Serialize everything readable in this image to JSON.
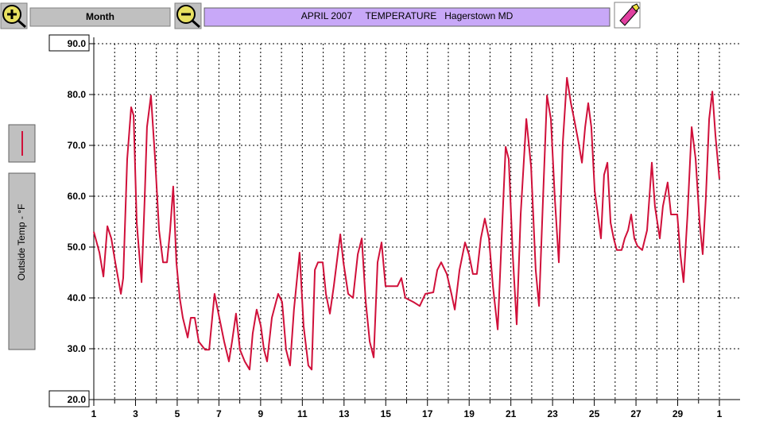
{
  "toolbar": {
    "period_button": "Month"
  },
  "chart_data": {
    "type": "line",
    "title": "APRIL 2007     TEMPERATURE   Hagerstown MD",
    "y_label": "Outside Temp - °F",
    "grid": true,
    "xlim": [
      1,
      31
    ],
    "ylim": [
      20,
      90
    ],
    "xticks": [
      1,
      3,
      5,
      7,
      9,
      11,
      13,
      15,
      17,
      19,
      21,
      23,
      25,
      27,
      29,
      {
        "value": 31,
        "label": "1"
      }
    ],
    "xminorticks": [
      2,
      4,
      6,
      8,
      10,
      12,
      14,
      16,
      18,
      20,
      22,
      24,
      26,
      28,
      30
    ],
    "yticks": [
      {
        "value": 20,
        "label": "20.0"
      },
      {
        "value": 30,
        "label": "30.0"
      },
      {
        "value": 40,
        "label": "40.0"
      },
      {
        "value": 50,
        "label": "50.0"
      },
      {
        "value": 60,
        "label": "60.0"
      },
      {
        "value": 70,
        "label": "70.0"
      },
      {
        "value": 80,
        "label": "80.0"
      },
      {
        "value": 90,
        "label": "90.0"
      }
    ],
    "x": [
      1.0,
      1.27,
      1.46,
      1.65,
      1.84,
      2.03,
      2.3,
      2.41,
      2.6,
      2.79,
      2.91,
      3.06,
      3.29,
      3.44,
      3.55,
      3.74,
      3.94,
      4.13,
      4.32,
      4.51,
      4.66,
      4.81,
      4.96,
      5.12,
      5.27,
      5.5,
      5.65,
      5.84,
      6.03,
      6.34,
      6.53,
      6.79,
      7.02,
      7.25,
      7.48,
      7.63,
      7.82,
      8.01,
      8.24,
      8.47,
      8.62,
      8.81,
      9.01,
      9.16,
      9.31,
      9.54,
      9.84,
      10.03,
      10.22,
      10.41,
      10.6,
      10.87,
      11.06,
      11.29,
      11.45,
      11.6,
      11.75,
      11.98,
      12.13,
      12.32,
      12.51,
      12.82,
      12.97,
      13.2,
      13.43,
      13.66,
      13.85,
      14.04,
      14.23,
      14.42,
      14.61,
      14.8,
      14.99,
      15.26,
      15.56,
      15.75,
      15.94,
      16.32,
      16.63,
      16.9,
      17.28,
      17.47,
      17.66,
      17.93,
      18.15,
      18.31,
      18.54,
      18.8,
      18.99,
      19.18,
      19.37,
      19.56,
      19.75,
      19.95,
      20.14,
      20.37,
      20.59,
      20.75,
      20.9,
      21.09,
      21.28,
      21.47,
      21.74,
      21.97,
      22.19,
      22.35,
      22.54,
      22.73,
      22.92,
      23.11,
      23.3,
      23.49,
      23.69,
      23.88,
      24.03,
      24.25,
      24.41,
      24.56,
      24.71,
      24.86,
      25.02,
      25.17,
      25.32,
      25.47,
      25.63,
      25.78,
      25.93,
      26.08,
      26.31,
      26.46,
      26.62,
      26.77,
      26.92,
      27.07,
      27.3,
      27.53,
      27.76,
      27.91,
      28.14,
      28.29,
      28.52,
      28.68,
      28.83,
      28.98,
      29.13,
      29.28,
      29.47,
      29.67,
      29.86,
      30.05,
      30.2,
      30.35,
      30.51,
      30.66,
      30.81,
      31.0
    ],
    "series": [
      {
        "color": "#d0103a",
        "values": [
          53.0,
          48.9,
          44.2,
          54.1,
          51.7,
          47.0,
          40.8,
          43.9,
          67.3,
          77.5,
          75.9,
          54.8,
          43.1,
          59.5,
          73.6,
          79.8,
          67.3,
          53.3,
          47.0,
          47.0,
          53.3,
          61.9,
          47.0,
          40.0,
          36.1,
          32.2,
          36.1,
          36.1,
          31.4,
          29.8,
          29.8,
          40.8,
          36.1,
          31.4,
          27.5,
          31.4,
          36.9,
          29.8,
          27.5,
          25.9,
          33.0,
          37.7,
          34.5,
          29.8,
          27.5,
          36.1,
          40.8,
          39.2,
          29.8,
          26.7,
          37.7,
          48.9,
          34.5,
          26.7,
          25.9,
          45.5,
          47.0,
          47.0,
          40.8,
          36.9,
          42.3,
          52.5,
          47.0,
          40.8,
          40.0,
          48.6,
          51.7,
          39.2,
          31.4,
          28.3,
          47.0,
          50.9,
          42.3,
          42.3,
          42.3,
          43.9,
          40.0,
          39.2,
          38.4,
          40.8,
          41.1,
          45.5,
          47.0,
          44.7,
          40.8,
          37.7,
          45.5,
          50.9,
          48.6,
          44.7,
          44.7,
          51.7,
          55.6,
          51.7,
          42.3,
          33.8,
          54.8,
          69.7,
          67.3,
          48.6,
          34.8,
          56.4,
          75.2,
          65.8,
          45.5,
          38.4,
          59.5,
          79.8,
          75.2,
          59.5,
          47.0,
          70.5,
          83.3,
          78.3,
          75.2,
          70.5,
          66.6,
          73.6,
          78.3,
          73.6,
          61.1,
          56.4,
          51.7,
          64.2,
          66.6,
          54.8,
          51.7,
          49.4,
          49.4,
          51.7,
          53.3,
          56.4,
          51.7,
          50.2,
          49.4,
          53.3,
          66.6,
          58.0,
          51.7,
          58.0,
          62.7,
          56.4,
          56.4,
          56.4,
          48.6,
          43.1,
          56.4,
          73.6,
          67.3,
          54.8,
          48.6,
          59.5,
          75.2,
          80.6,
          72.0,
          63.4
        ]
      }
    ]
  }
}
